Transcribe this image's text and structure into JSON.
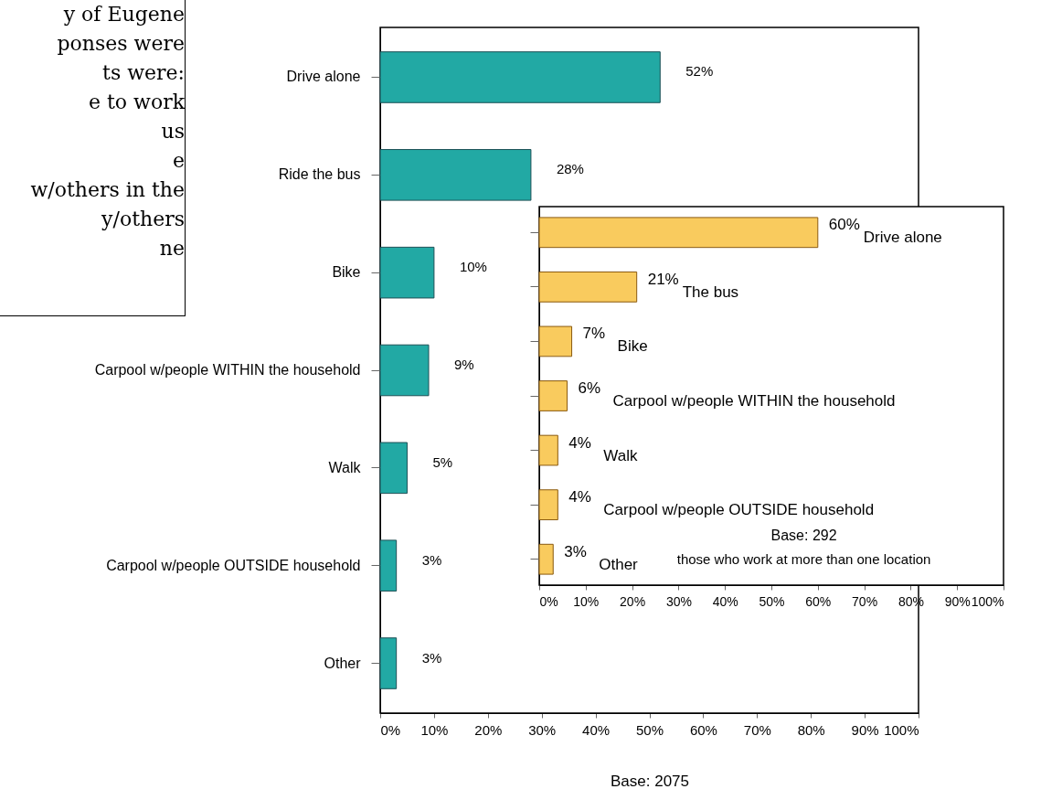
{
  "chart_data": [
    {
      "type": "other",
      "annotations": [
        "y of Eugene",
        "ponses were",
        "ts were:",
        "e to work",
        "us",
        "e",
        "w/others in the",
        "y/others",
        "ne"
      ]
    },
    {
      "type": "bar",
      "orientation": "horizontal",
      "categories": [
        "Drive alone",
        "Ride the bus",
        "Bike",
        "Carpool w/people WITHIN the household",
        "Walk",
        "Carpool w/people OUTSIDE household",
        "Other"
      ],
      "values": [
        52,
        28,
        10,
        9,
        5,
        3,
        3
      ],
      "color": "#22a9a4",
      "value_labels": [
        "52%",
        "28%",
        "10%",
        "9%",
        "5%",
        "3%",
        "3%"
      ],
      "xlim": [
        0,
        100
      ],
      "xticks": [
        {
          "value": 0,
          "label": "0%"
        },
        {
          "value": 10,
          "label": "10%"
        },
        {
          "value": 20,
          "label": "20%"
        },
        {
          "value": 30,
          "label": "30%"
        },
        {
          "value": 40,
          "label": "40%"
        },
        {
          "value": 50,
          "label": "50%"
        },
        {
          "value": 60,
          "label": "60%"
        },
        {
          "value": 70,
          "label": "70%"
        },
        {
          "value": 80,
          "label": "80%"
        },
        {
          "value": 90,
          "label": "90%"
        },
        {
          "value": 100,
          "label": "100%"
        }
      ],
      "xlabel": "Base: 2075"
    },
    {
      "type": "bar",
      "orientation": "horizontal",
      "categories": [
        "Drive alone",
        "The bus",
        "Bike",
        "Carpool w/people WITHIN the household",
        "Walk",
        "Carpool w/people OUTSIDE household",
        "Other"
      ],
      "values": [
        60,
        21,
        7,
        6,
        4,
        4,
        3
      ],
      "color": "#f9cb5e",
      "value_labels": [
        "60%",
        "21%",
        "7%",
        "6%",
        "4%",
        "4%",
        "3%"
      ],
      "xlim": [
        0,
        100
      ],
      "xticks": [
        {
          "value": 0,
          "label": "0%"
        },
        {
          "value": 10,
          "label": "10%"
        },
        {
          "value": 20,
          "label": "20%"
        },
        {
          "value": 30,
          "label": "30%"
        },
        {
          "value": 40,
          "label": "40%"
        },
        {
          "value": 50,
          "label": "50%"
        },
        {
          "value": 60,
          "label": "60%"
        },
        {
          "value": 70,
          "label": "70%"
        },
        {
          "value": 80,
          "label": "80%"
        },
        {
          "value": 90,
          "label": "90%"
        },
        {
          "value": 100,
          "label": "100%"
        }
      ],
      "tick_labels": "x",
      "annotations": [
        "Base: 292",
        "those who work at more than one location"
      ]
    }
  ]
}
